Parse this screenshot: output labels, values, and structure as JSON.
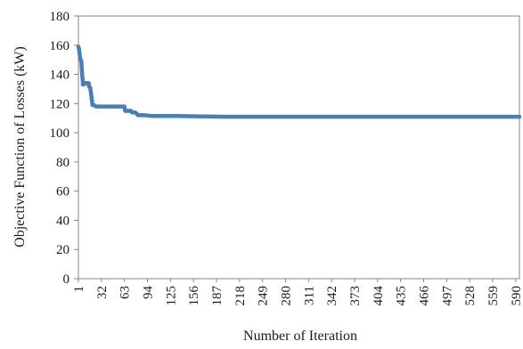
{
  "chart_data": {
    "type": "line",
    "title": "",
    "xlabel": "Number of Iteration",
    "ylabel": "Objective Function of Losses (kW)",
    "xlim": [
      1,
      595
    ],
    "ylim": [
      0,
      180
    ],
    "grid": false,
    "legend": "none",
    "x_ticks": [
      "1",
      "32",
      "63",
      "94",
      "125",
      "156",
      "187",
      "218",
      "249",
      "280",
      "311",
      "342",
      "373",
      "404",
      "435",
      "466",
      "497",
      "528",
      "559",
      "590"
    ],
    "y_ticks": [
      "0",
      "20",
      "40",
      "60",
      "80",
      "100",
      "120",
      "140",
      "160",
      "180"
    ],
    "series": [
      {
        "color": "#4a7ebb",
        "x": [
          1,
          2,
          3,
          4,
          5,
          6,
          7,
          7,
          8,
          9,
          15,
          15,
          16,
          17,
          20,
          21,
          22,
          25,
          25,
          28,
          40,
          55,
          63,
          64,
          72,
          73,
          77,
          80,
          81,
          85,
          90,
          100,
          130,
          200,
          250,
          400,
          595
        ],
        "y": [
          159,
          157,
          152,
          150,
          149,
          140,
          135,
          133,
          133,
          134,
          134,
          132,
          131,
          131,
          119,
          119,
          119,
          118,
          118,
          118,
          118,
          118,
          118,
          115,
          115,
          114,
          114,
          113,
          112,
          112,
          112,
          111.5,
          111.5,
          111,
          111,
          111,
          111
        ]
      }
    ]
  }
}
